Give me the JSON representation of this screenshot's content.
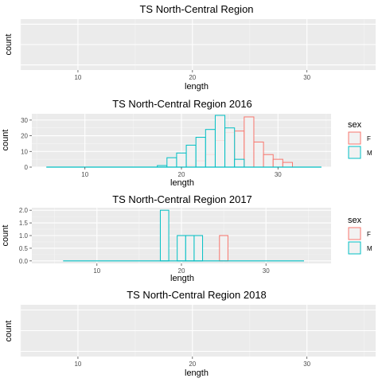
{
  "colors": {
    "panel": "#ebebeb",
    "grid_major": "#ffffff",
    "grid_minor": "#f5f5f5",
    "tick": "#4d4d4d",
    "F": "#f8766d",
    "M": "#00bfc4",
    "bar_fill": "#f2f2f2"
  },
  "legend": {
    "title": "sex",
    "entries": [
      {
        "key": "F",
        "label": "F",
        "color": "#f8766d"
      },
      {
        "key": "M",
        "label": "M",
        "color": "#00bfc4"
      }
    ]
  },
  "chart_data": [
    {
      "type": "bar",
      "title": "TS North-Central Region",
      "xlabel": "length",
      "ylabel": "count",
      "xlim": [
        5,
        36
      ],
      "xticks": [
        10,
        20,
        30
      ],
      "ylim": null,
      "yticks": [],
      "legend": false,
      "bin_width": 1,
      "series": []
    },
    {
      "type": "bar",
      "title": "TS North-Central Region 2016",
      "xlabel": "length",
      "ylabel": "count",
      "xlim": [
        4.5,
        35.5
      ],
      "xticks": [
        10,
        20,
        30
      ],
      "ylim": [
        0,
        34
      ],
      "yticks": [
        0,
        10,
        20,
        30
      ],
      "legend": true,
      "bin_width": 1,
      "x_extent": [
        6,
        34.5
      ],
      "series": [
        {
          "name": "F",
          "x": [
            19,
            20,
            21,
            22,
            23,
            24,
            25,
            26,
            27,
            28,
            29,
            30,
            31
          ],
          "values": [
            0,
            0,
            1,
            4,
            8,
            17,
            22,
            23,
            32,
            16,
            8,
            5,
            3
          ]
        },
        {
          "name": "M",
          "x": [
            18,
            19,
            20,
            21,
            22,
            23,
            24,
            25,
            26
          ],
          "values": [
            1,
            6,
            9,
            14,
            19,
            24,
            33,
            25,
            5
          ]
        }
      ]
    },
    {
      "type": "bar",
      "title": "TS North-Central Region 2017",
      "xlabel": "length",
      "ylabel": "count",
      "xlim": [
        2.3,
        37.7
      ],
      "xticks": [
        10,
        20,
        30
      ],
      "ylim": [
        -0.1,
        2.1
      ],
      "yticks": [
        0.0,
        0.5,
        1.0,
        1.5,
        2.0
      ],
      "ytick_labels": [
        "0.0",
        "0.5",
        "1.0",
        "1.5",
        "2.0"
      ],
      "legend": true,
      "bin_width": 1,
      "x_extent": [
        6,
        34.5
      ],
      "series": [
        {
          "name": "F",
          "x": [
            25
          ],
          "values": [
            1
          ]
        },
        {
          "name": "M",
          "x": [
            18,
            20,
            21,
            22
          ],
          "values": [
            2,
            1,
            1,
            1
          ]
        }
      ]
    },
    {
      "type": "bar",
      "title": "TS North-Central Region 2018",
      "xlabel": "length",
      "ylabel": "count",
      "xlim": [
        5,
        36
      ],
      "xticks": [
        10,
        20,
        30
      ],
      "ylim": null,
      "yticks": [],
      "legend": false,
      "bin_width": 1,
      "series": []
    }
  ]
}
